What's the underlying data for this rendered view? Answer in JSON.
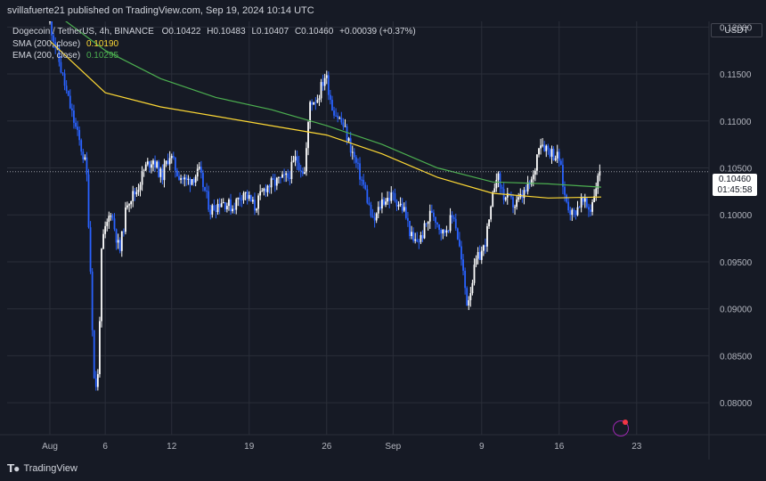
{
  "header": {
    "published": "svillafuerte21 published on TradingView.com, Sep 19, 2024 10:14 UTC"
  },
  "legend": {
    "symbol": "Dogecoin / TetherUS, 4h, BINANCE",
    "open": "O0.10422",
    "high": "H0.10483",
    "low": "L0.10407",
    "close": "C0.10460",
    "change": "+0.00039 (+0.37%)",
    "sma_label": "SMA (200, close)",
    "sma_value": "0.10190",
    "ema_label": "EMA (200, close)",
    "ema_value": "0.10295"
  },
  "currency": "USDT",
  "price_tag": {
    "price": "0.10460",
    "countdown": "01:45:58"
  },
  "footer": {
    "brand": "TradingView"
  },
  "colors": {
    "up": "#ffffff",
    "down": "#2962ff",
    "sma": "#fdd835",
    "ema": "#4caf50",
    "grid": "#2a2e39",
    "background": "#161a25"
  },
  "chart_data": {
    "type": "candlestick",
    "title": "Dogecoin / TetherUS, 4h, BINANCE",
    "y_ticks": [
      "0.12000",
      "0.11500",
      "0.11000",
      "0.10500",
      "0.10000",
      "0.09500",
      "0.09000",
      "0.08500",
      "0.08000"
    ],
    "y_tick_values": [
      0.12,
      0.115,
      0.11,
      0.105,
      0.1,
      0.095,
      0.09,
      0.085,
      0.08
    ],
    "x_ticks": [
      "Aug",
      "6",
      "12",
      "19",
      "26",
      "Sep",
      "9",
      "16",
      "23"
    ],
    "x_tick_days": [
      0,
      5,
      11,
      18,
      25,
      31,
      39,
      46,
      53
    ],
    "ylim": [
      0.0766,
      0.1206
    ],
    "last_price": 0.1046,
    "anchors": [
      [
        0,
        0.1205
      ],
      [
        1,
        0.1155
      ],
      [
        1.6,
        0.1125
      ],
      [
        2.5,
        0.1085
      ],
      [
        3.3,
        0.105
      ],
      [
        3.6,
        0.0965
      ],
      [
        4.0,
        0.0825
      ],
      [
        4.3,
        0.0815
      ],
      [
        4.7,
        0.097
      ],
      [
        5.5,
        0.1005
      ],
      [
        6.3,
        0.096
      ],
      [
        7.0,
        0.1015
      ],
      [
        7.8,
        0.1025
      ],
      [
        8.6,
        0.105
      ],
      [
        9.3,
        0.106
      ],
      [
        10.1,
        0.104
      ],
      [
        10.8,
        0.1065
      ],
      [
        11.5,
        0.1045
      ],
      [
        12.3,
        0.1035
      ],
      [
        13.5,
        0.1045
      ],
      [
        14.5,
        0.1005
      ],
      [
        15.5,
        0.1015
      ],
      [
        16.5,
        0.1008
      ],
      [
        17.5,
        0.1025
      ],
      [
        18.5,
        0.1008
      ],
      [
        19.5,
        0.103
      ],
      [
        20.5,
        0.1035
      ],
      [
        21.5,
        0.104
      ],
      [
        22.2,
        0.106
      ],
      [
        23.0,
        0.1045
      ],
      [
        23.5,
        0.112
      ],
      [
        24.2,
        0.1125
      ],
      [
        24.9,
        0.115
      ],
      [
        25.5,
        0.1115
      ],
      [
        26.5,
        0.1095
      ],
      [
        27.5,
        0.106
      ],
      [
        28.5,
        0.1025
      ],
      [
        29.2,
        0.099
      ],
      [
        30.0,
        0.1015
      ],
      [
        31.0,
        0.102
      ],
      [
        32.0,
        0.1005
      ],
      [
        32.8,
        0.097
      ],
      [
        33.5,
        0.0975
      ],
      [
        34.5,
        0.1005
      ],
      [
        35.5,
        0.098
      ],
      [
        36.5,
        0.1
      ],
      [
        37.0,
        0.0965
      ],
      [
        37.7,
        0.0905
      ],
      [
        38.5,
        0.095
      ],
      [
        39.2,
        0.0965
      ],
      [
        39.8,
        0.1
      ],
      [
        40.3,
        0.1045
      ],
      [
        41.0,
        0.102
      ],
      [
        42.0,
        0.101
      ],
      [
        43.0,
        0.1025
      ],
      [
        43.7,
        0.104
      ],
      [
        44.2,
        0.108
      ],
      [
        45.0,
        0.107
      ],
      [
        46.0,
        0.106
      ],
      [
        46.5,
        0.102
      ],
      [
        47.2,
        0.1
      ],
      [
        48.0,
        0.1015
      ],
      [
        48.8,
        0.1005
      ],
      [
        49.4,
        0.1035
      ],
      [
        49.8,
        0.1046
      ]
    ],
    "sma": [
      [
        0,
        0.1185
      ],
      [
        5,
        0.113
      ],
      [
        10,
        0.1115
      ],
      [
        15,
        0.1105
      ],
      [
        20,
        0.1095
      ],
      [
        25,
        0.1085
      ],
      [
        30,
        0.1065
      ],
      [
        35,
        0.104
      ],
      [
        40,
        0.1023
      ],
      [
        45,
        0.1018
      ],
      [
        49.8,
        0.1019
      ]
    ],
    "ema": [
      [
        1,
        0.121
      ],
      [
        5,
        0.1175
      ],
      [
        10,
        0.1145
      ],
      [
        15,
        0.1125
      ],
      [
        20,
        0.1112
      ],
      [
        25,
        0.1095
      ],
      [
        30,
        0.1075
      ],
      [
        35,
        0.105
      ],
      [
        40,
        0.1035
      ],
      [
        45,
        0.1033
      ],
      [
        49.8,
        0.10295
      ]
    ]
  }
}
